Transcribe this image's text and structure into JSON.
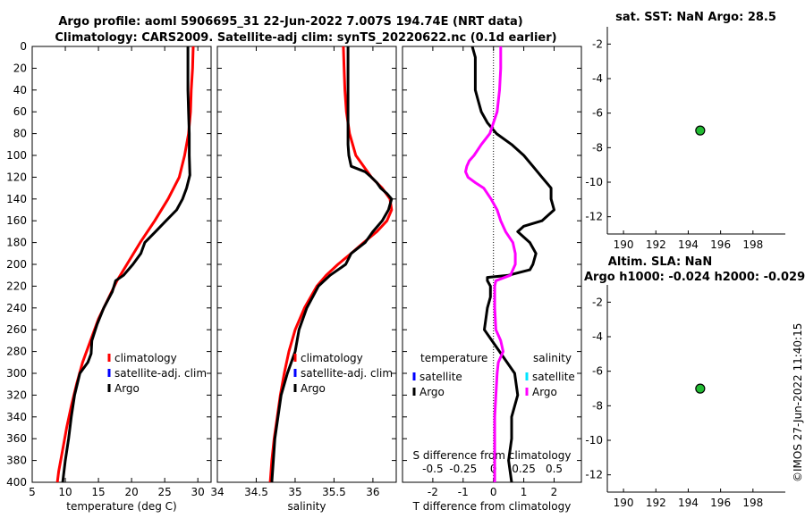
{
  "titles": {
    "line1": "Argo profile: aoml 5906695_31 22-Jun-2022 7.007S 194.74E (NRT data)",
    "line2": "Climatology: CARS2009. Satellite-adj clim: synTS_20220622.nc (0.1d earlier)",
    "sst": "sat. SST: NaN Argo: 28.5",
    "sla1": "Altim. SLA: NaN",
    "sla2": "Argo h1000: -0.024 h2000: -0.029"
  },
  "footer": "©IMOS 27-Jun-2022 11:40:15",
  "colors": {
    "climatology": "#ff0000",
    "satellite": "#0000ff",
    "argo": "#000000",
    "salinity_diff": "#ff00ff",
    "salinity_sat": "#00e5ff",
    "marker": "#22bb33"
  },
  "chart_data": [
    {
      "id": "temperature",
      "type": "line",
      "xlabel": "temperature (deg C)",
      "xlim": [
        5,
        32
      ],
      "xticks": [
        5,
        10,
        15,
        20,
        25,
        30
      ],
      "ylim": [
        0,
        400
      ],
      "yticks": [
        0,
        20,
        40,
        60,
        80,
        100,
        120,
        140,
        160,
        180,
        200,
        220,
        240,
        260,
        280,
        300,
        320,
        340,
        360,
        380,
        400
      ],
      "legend": [
        "climatology",
        "satellite-adj. clim",
        "Argo"
      ],
      "series": [
        {
          "name": "climatology",
          "color": "#ff0000",
          "depth": [
            0,
            20,
            40,
            60,
            80,
            100,
            120,
            140,
            160,
            180,
            200,
            215,
            230,
            250,
            270,
            290,
            310,
            330,
            350,
            370,
            390,
            400
          ],
          "values": [
            29.3,
            29.2,
            29.0,
            28.9,
            28.6,
            28.0,
            27.2,
            25.5,
            23.5,
            21.3,
            19.3,
            17.8,
            16.6,
            15.0,
            13.8,
            12.6,
            11.7,
            10.9,
            10.2,
            9.6,
            9.0,
            8.8
          ]
        },
        {
          "name": "Argo",
          "color": "#000000",
          "depth": [
            0,
            20,
            40,
            60,
            80,
            100,
            118,
            130,
            140,
            150,
            160,
            170,
            180,
            190,
            200,
            210,
            215,
            225,
            240,
            255,
            270,
            282,
            290,
            300,
            320,
            340,
            360,
            380,
            400
          ],
          "values": [
            28.5,
            28.5,
            28.5,
            28.6,
            28.7,
            28.7,
            28.8,
            28.3,
            27.7,
            26.8,
            25.2,
            23.6,
            22.0,
            21.4,
            20.2,
            18.8,
            17.6,
            17.1,
            15.8,
            14.8,
            14.0,
            13.9,
            13.4,
            12.2,
            11.4,
            10.9,
            10.5,
            10.0,
            9.6
          ]
        }
      ]
    },
    {
      "id": "salinity",
      "type": "line",
      "xlabel": "salinity",
      "xlim": [
        34.0,
        36.3
      ],
      "xticks": [
        34,
        34.5,
        35,
        35.5,
        36
      ],
      "ylim": [
        0,
        400
      ],
      "legend": [
        "climatology",
        "satellite-adj. clim",
        "Argo"
      ],
      "series": [
        {
          "name": "climatology",
          "color": "#ff0000",
          "depth": [
            0,
            20,
            40,
            60,
            80,
            100,
            120,
            130,
            140,
            150,
            160,
            170,
            180,
            190,
            200,
            210,
            220,
            240,
            260,
            280,
            300,
            320,
            340,
            360,
            380,
            400
          ],
          "values": [
            35.62,
            35.63,
            35.64,
            35.66,
            35.7,
            35.78,
            35.98,
            36.12,
            36.22,
            36.24,
            36.18,
            36.05,
            35.88,
            35.72,
            35.55,
            35.4,
            35.28,
            35.12,
            35.0,
            34.92,
            34.86,
            34.81,
            34.77,
            34.73,
            34.7,
            34.68
          ]
        },
        {
          "name": "Argo",
          "color": "#000000",
          "depth": [
            0,
            20,
            40,
            60,
            80,
            90,
            100,
            110,
            115,
            120,
            125,
            130,
            135,
            140,
            150,
            160,
            170,
            180,
            190,
            200,
            210,
            220,
            240,
            260,
            280,
            300,
            320,
            340,
            360,
            380,
            400
          ],
          "values": [
            35.68,
            35.68,
            35.68,
            35.68,
            35.68,
            35.68,
            35.69,
            35.72,
            35.9,
            35.98,
            36.05,
            36.1,
            36.18,
            36.24,
            36.2,
            36.12,
            36.0,
            35.9,
            35.72,
            35.65,
            35.45,
            35.3,
            35.15,
            35.05,
            35.0,
            34.9,
            34.82,
            34.78,
            34.74,
            34.72,
            34.7
          ]
        }
      ]
    },
    {
      "id": "difference",
      "type": "line",
      "xlabel": "T difference from climatology",
      "xlabel_top": "S difference from climatology",
      "xlim": [
        -3,
        2.9
      ],
      "xticks": [
        -2,
        -1,
        0,
        1,
        2
      ],
      "xlim_top": [
        -0.75,
        0.725
      ],
      "xticks_top": [
        -0.5,
        -0.25,
        0,
        0.25,
        0.5
      ],
      "xticklabels_top": [
        "-0.5",
        "-0.25",
        "0",
        "0.25",
        "0.5"
      ],
      "ylim": [
        0,
        400
      ],
      "legend_temperature": {
        "title": "temperature",
        "items": [
          "satellite",
          "Argo"
        ]
      },
      "legend_salinity": {
        "title": "salinity",
        "items": [
          "satellite",
          "Argo"
        ]
      },
      "series": [
        {
          "name": "temperature Argo",
          "color": "#000000",
          "axis": "T",
          "depth": [
            0,
            10,
            20,
            30,
            40,
            50,
            60,
            70,
            80,
            90,
            100,
            110,
            120,
            130,
            140,
            150,
            160,
            165,
            170,
            180,
            190,
            200,
            205,
            210,
            212,
            215,
            220,
            230,
            240,
            260,
            280,
            300,
            320,
            340,
            360,
            380,
            400
          ],
          "values": [
            -0.7,
            -0.6,
            -0.6,
            -0.6,
            -0.6,
            -0.5,
            -0.4,
            -0.2,
            0.1,
            0.6,
            1.0,
            1.3,
            1.6,
            1.9,
            1.9,
            2.0,
            1.6,
            1.0,
            0.8,
            1.2,
            1.4,
            1.3,
            1.2,
            0.5,
            -0.2,
            -0.2,
            -0.1,
            -0.1,
            -0.2,
            -0.3,
            0.2,
            0.7,
            0.8,
            0.6,
            0.6,
            0.5,
            0.6
          ]
        },
        {
          "name": "salinity Argo",
          "color": "#ff00ff",
          "axis": "S",
          "depth": [
            0,
            20,
            40,
            60,
            80,
            90,
            100,
            105,
            110,
            115,
            120,
            125,
            130,
            140,
            150,
            160,
            170,
            180,
            190,
            200,
            210,
            215,
            220,
            240,
            260,
            270,
            280,
            290,
            300,
            320,
            340,
            360,
            380,
            400
          ],
          "values": [
            0.06,
            0.06,
            0.05,
            0.03,
            -0.03,
            -0.1,
            -0.16,
            -0.2,
            -0.22,
            -0.23,
            -0.21,
            -0.15,
            -0.08,
            -0.02,
            0.03,
            0.06,
            0.1,
            0.16,
            0.18,
            0.18,
            0.14,
            0.02,
            0.01,
            0.01,
            0.02,
            0.06,
            0.08,
            0.04,
            0.03,
            0.02,
            0.01,
            0.01,
            0.01,
            0.01
          ]
        }
      ]
    },
    {
      "id": "sst-map",
      "type": "scatter",
      "xlim": [
        189,
        200
      ],
      "xticks": [
        190,
        192,
        194,
        196,
        198
      ],
      "ylim": [
        -13,
        -1
      ],
      "yticks": [
        -2,
        -4,
        -6,
        -8,
        -10,
        -12
      ],
      "points": [
        {
          "x": 194.74,
          "y": -7.007
        }
      ]
    },
    {
      "id": "sla-map",
      "type": "scatter",
      "xlim": [
        189,
        200
      ],
      "xticks": [
        190,
        192,
        194,
        196,
        198
      ],
      "ylim": [
        -13,
        -1
      ],
      "yticks": [
        -2,
        -4,
        -6,
        -8,
        -10,
        -12
      ],
      "points": [
        {
          "x": 194.74,
          "y": -7.007
        }
      ]
    }
  ]
}
